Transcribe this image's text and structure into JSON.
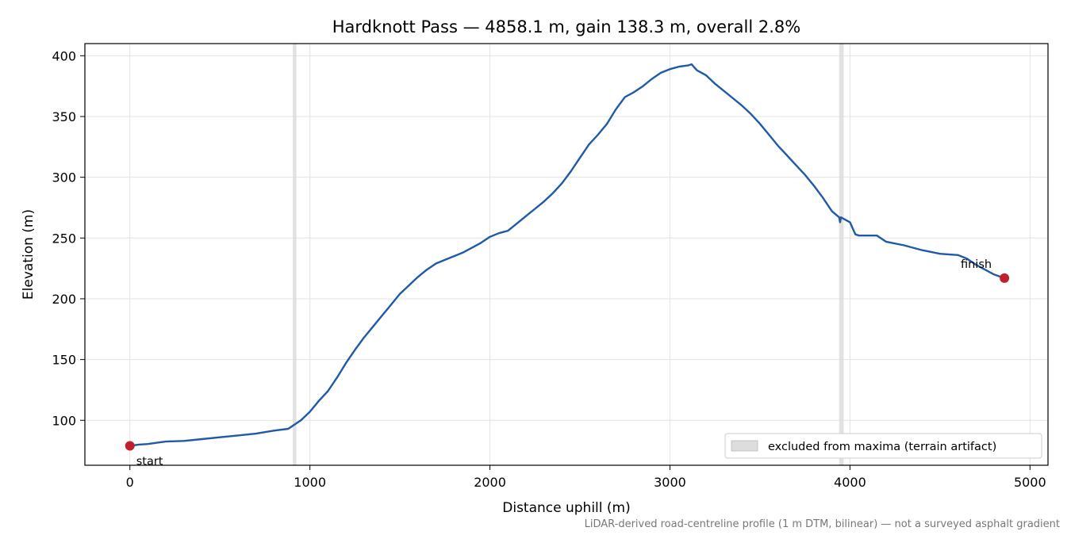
{
  "chart_data": {
    "type": "line",
    "title": "Hardknott Pass — 4858.1 m, gain 138.3 m, overall 2.8%",
    "xlabel": "Distance uphill (m)",
    "ylabel": "Elevation (m)",
    "xlim": [
      -250,
      5100
    ],
    "ylim": [
      63,
      410
    ],
    "x_ticks": [
      0,
      1000,
      2000,
      3000,
      4000,
      5000
    ],
    "y_ticks": [
      100,
      150,
      200,
      250,
      300,
      350,
      400
    ],
    "grid": true,
    "legend_placement": "lower-right",
    "series": [
      {
        "color": "#1f5aa8",
        "x": [
          0,
          50,
          100,
          150,
          200,
          300,
          400,
          500,
          600,
          700,
          800,
          880,
          900,
          950,
          1000,
          1050,
          1100,
          1150,
          1200,
          1250,
          1300,
          1350,
          1400,
          1450,
          1500,
          1550,
          1600,
          1650,
          1700,
          1750,
          1800,
          1850,
          1900,
          1950,
          2000,
          2050,
          2100,
          2150,
          2200,
          2250,
          2300,
          2350,
          2400,
          2450,
          2500,
          2550,
          2600,
          2650,
          2700,
          2750,
          2800,
          2850,
          2900,
          2950,
          3000,
          3050,
          3100,
          3120,
          3150,
          3200,
          3250,
          3300,
          3350,
          3400,
          3450,
          3500,
          3550,
          3600,
          3650,
          3700,
          3750,
          3800,
          3850,
          3900,
          3940,
          3945,
          3950,
          4000,
          4030,
          4050,
          4100,
          4150,
          4200,
          4300,
          4400,
          4500,
          4600,
          4650,
          4700,
          4750,
          4800,
          4858
        ],
        "y": [
          79,
          80,
          80.5,
          81.5,
          82.5,
          83,
          84.5,
          86,
          87.5,
          89,
          91.5,
          93,
          95,
          100,
          107,
          116,
          124,
          135,
          147,
          158,
          168,
          177,
          186,
          195,
          204,
          211,
          218,
          224,
          229,
          232,
          235,
          238,
          242,
          246,
          251,
          254,
          256,
          262,
          268,
          274,
          280,
          287,
          295,
          305,
          316,
          327,
          335,
          344,
          356,
          366,
          370,
          375,
          381,
          386,
          389,
          391,
          392,
          393,
          388,
          384,
          377,
          371,
          365,
          359,
          352,
          344,
          335,
          326,
          318,
          310,
          302,
          293,
          283,
          272,
          267,
          263,
          267,
          263,
          253,
          252,
          252,
          252,
          247,
          244,
          240,
          237,
          236,
          233,
          228,
          224,
          220,
          217
        ]
      }
    ],
    "excluded_ranges": [
      [
        905,
        925
      ],
      [
        3940,
        3965
      ]
    ],
    "points": [
      {
        "x": 0,
        "y": 79,
        "label": "start",
        "color": "#c11f2d"
      },
      {
        "x": 4858.1,
        "y": 217,
        "label": "finish",
        "color": "#c11f2d"
      }
    ],
    "legend": {
      "label": "excluded from maxima (terrain artifact)"
    },
    "footer": "LiDAR-derived road-centreline profile (1 m DTM, bilinear) — not a surveyed asphalt gradient"
  }
}
